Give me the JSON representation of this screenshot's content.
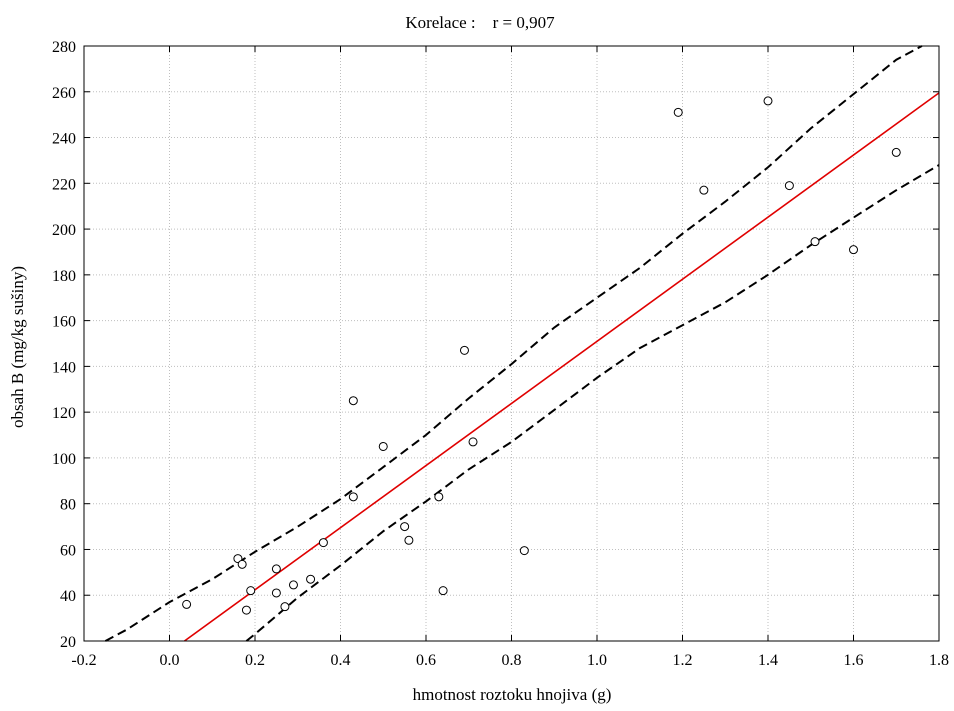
{
  "chart_data": {
    "type": "scatter",
    "title": "Korelace :    r = 0,907",
    "xlabel": "hmotnost roztoku hnojiva (g)",
    "ylabel": "obsah B (mg/kg sušiny)",
    "xlim": [
      -0.2,
      1.8
    ],
    "ylim": [
      20,
      280
    ],
    "x_ticks": [
      -0.2,
      0.0,
      0.2,
      0.4,
      0.6,
      0.8,
      1.0,
      1.2,
      1.4,
      1.6,
      1.8
    ],
    "x_tick_labels": [
      "-0.2",
      "0.0",
      "0.2",
      "0.4",
      "0.6",
      "0.8",
      "1.0",
      "1.2",
      "1.4",
      "1.6",
      "1.8"
    ],
    "y_ticks": [
      20,
      40,
      60,
      80,
      100,
      120,
      140,
      160,
      180,
      200,
      220,
      240,
      260,
      280
    ],
    "y_tick_labels": [
      "20",
      "40",
      "60",
      "80",
      "100",
      "120",
      "140",
      "160",
      "180",
      "200",
      "220",
      "240",
      "260",
      "280"
    ],
    "grid": true,
    "colors": {
      "points": "#000000",
      "regression": "#e00000",
      "confidence": "#000000",
      "grid": "#bfbfbf"
    },
    "points": [
      {
        "x": 0.04,
        "y": 36
      },
      {
        "x": 0.16,
        "y": 56
      },
      {
        "x": 0.17,
        "y": 53.5
      },
      {
        "x": 0.18,
        "y": 33.5
      },
      {
        "x": 0.19,
        "y": 42
      },
      {
        "x": 0.25,
        "y": 51.5
      },
      {
        "x": 0.25,
        "y": 41
      },
      {
        "x": 0.27,
        "y": 35
      },
      {
        "x": 0.29,
        "y": 44.5
      },
      {
        "x": 0.33,
        "y": 47
      },
      {
        "x": 0.36,
        "y": 63
      },
      {
        "x": 0.43,
        "y": 83
      },
      {
        "x": 0.43,
        "y": 125
      },
      {
        "x": 0.5,
        "y": 105
      },
      {
        "x": 0.55,
        "y": 70
      },
      {
        "x": 0.56,
        "y": 64
      },
      {
        "x": 0.63,
        "y": 83
      },
      {
        "x": 0.64,
        "y": 42
      },
      {
        "x": 0.69,
        "y": 147
      },
      {
        "x": 0.71,
        "y": 107
      },
      {
        "x": 0.83,
        "y": 59.5
      },
      {
        "x": 1.19,
        "y": 251
      },
      {
        "x": 1.25,
        "y": 217
      },
      {
        "x": 1.4,
        "y": 256
      },
      {
        "x": 1.45,
        "y": 219
      },
      {
        "x": 1.51,
        "y": 194.5
      },
      {
        "x": 1.6,
        "y": 191
      },
      {
        "x": 1.7,
        "y": 233.5
      }
    ],
    "regression_line": {
      "x": [
        0.035,
        1.8
      ],
      "y": [
        20,
        259.5
      ]
    },
    "confidence_upper": {
      "x": [
        -0.15,
        -0.1,
        0.0,
        0.1,
        0.2,
        0.3,
        0.4,
        0.5,
        0.6,
        0.7,
        0.8,
        0.9,
        1.0,
        1.1,
        1.2,
        1.3,
        1.4,
        1.5,
        1.6,
        1.7,
        1.76
      ],
      "y": [
        20,
        25,
        37,
        47,
        59,
        70,
        82,
        96,
        110,
        126,
        141,
        157,
        170,
        183,
        198,
        212,
        227,
        244,
        259,
        274,
        280
      ]
    },
    "confidence_lower": {
      "x": [
        0.18,
        0.2,
        0.3,
        0.4,
        0.5,
        0.6,
        0.7,
        0.8,
        0.9,
        1.0,
        1.1,
        1.2,
        1.3,
        1.4,
        1.5,
        1.6,
        1.7,
        1.8
      ],
      "y": [
        20,
        23,
        39,
        53,
        68,
        81,
        95,
        107,
        121,
        135,
        148,
        158,
        168,
        180,
        193,
        205,
        217,
        228
      ]
    }
  }
}
